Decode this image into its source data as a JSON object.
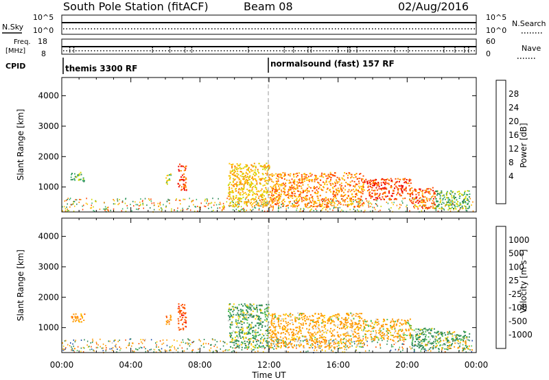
{
  "header": {
    "station": "South Pole Station (fitACF)",
    "beam": "Beam 08",
    "date": "02/Aug/2016"
  },
  "panels": {
    "nsky_label": "N.Sky",
    "nsearch_label": "N.Search",
    "nsky_ticks": [
      "10^5",
      "10^0"
    ],
    "freq_label_1": "Freq.",
    "freq_label_2": "[MHz]",
    "freq_ticks": [
      "18",
      "8"
    ],
    "nave_label": "Nave",
    "nave_ticks": [
      "60",
      "0"
    ],
    "cpid_label": "CPID",
    "cpid_modes": [
      "themis 3300 RF",
      "normalsound (fast) 157 RF"
    ]
  },
  "colorbars": {
    "power": {
      "label": "Power [dB]",
      "ticks": [
        "28",
        "24",
        "20",
        "16",
        "12",
        "8",
        "4"
      ],
      "colors": [
        "#ee0000",
        "#ff4500",
        "#ff8c00",
        "#ffc000",
        "#cfd800",
        "#3cb371",
        "#2e8b57",
        "#1e5aa8",
        "#2020e0"
      ]
    },
    "velocity": {
      "label": "Velocity [m s⁻¹]",
      "ticks": [
        "1000",
        "500",
        "100",
        "25",
        "-25",
        "-100",
        "-500",
        "-1000"
      ],
      "colors": [
        "#1515d8",
        "#1f4fa8",
        "#2e8b57",
        "#4fc24f",
        "#c8c8c8",
        "#ffd000",
        "#ff9900",
        "#ff5500",
        "#ee0000"
      ]
    }
  },
  "chart_data": [
    {
      "type": "heatmap",
      "title": "",
      "xlabel": "Time UT",
      "ylabel": "Slant Range [km]",
      "x_tick_labels": [
        "00:00",
        "04:00",
        "08:00",
        "12:00",
        "16:00",
        "20:00",
        "00:00"
      ],
      "x_range_hours": [
        0,
        24
      ],
      "y_tick_labels": [
        "1000",
        "2000",
        "3000",
        "4000"
      ],
      "ylim": [
        180,
        4600
      ],
      "colorbar": "power",
      "scatter_regions": [
        {
          "t": [
            0.5,
            1.3
          ],
          "r": [
            1200,
            1500
          ],
          "value": 10
        },
        {
          "t": [
            6.0,
            6.3
          ],
          "r": [
            1100,
            1500
          ],
          "value": 14
        },
        {
          "t": [
            6.7,
            7.2
          ],
          "r": [
            900,
            1800
          ],
          "value": 26
        },
        {
          "t": [
            9.6,
            12.0
          ],
          "r": [
            350,
            1800
          ],
          "value": 18
        },
        {
          "t": [
            12.0,
            17.5
          ],
          "r": [
            350,
            1500
          ],
          "value": 22
        },
        {
          "t": [
            17.5,
            20.2
          ],
          "r": [
            600,
            1300
          ],
          "value": 26
        },
        {
          "t": [
            20.2,
            21.6
          ],
          "r": [
            300,
            1000
          ],
          "value": 24
        },
        {
          "t": [
            21.6,
            23.6
          ],
          "r": [
            300,
            900
          ],
          "value": 10
        }
      ]
    },
    {
      "type": "heatmap",
      "title": "",
      "xlabel": "Time UT",
      "ylabel": "Slant Range [km]",
      "x_tick_labels": [
        "00:00",
        "04:00",
        "08:00",
        "12:00",
        "16:00",
        "20:00",
        "00:00"
      ],
      "x_range_hours": [
        0,
        24
      ],
      "y_tick_labels": [
        "1000",
        "2000",
        "3000",
        "4000"
      ],
      "ylim": [
        180,
        4600
      ],
      "colorbar": "velocity",
      "scatter_regions": [
        {
          "t": [
            0.5,
            1.3
          ],
          "r": [
            1200,
            1500
          ],
          "value": -300
        },
        {
          "t": [
            6.0,
            6.3
          ],
          "r": [
            1100,
            1500
          ],
          "value": -400
        },
        {
          "t": [
            6.7,
            7.2
          ],
          "r": [
            900,
            1800
          ],
          "value": -800
        },
        {
          "t": [
            9.6,
            12.0
          ],
          "r": [
            350,
            1800
          ],
          "value": 150
        },
        {
          "t": [
            12.0,
            17.5
          ],
          "r": [
            350,
            1500
          ],
          "value": -200
        },
        {
          "t": [
            17.5,
            20.2
          ],
          "r": [
            600,
            1300
          ],
          "value": -150
        },
        {
          "t": [
            20.2,
            21.6
          ],
          "r": [
            300,
            1000
          ],
          "value": 200
        },
        {
          "t": [
            21.6,
            23.6
          ],
          "r": [
            300,
            900
          ],
          "value": 100
        }
      ]
    }
  ]
}
